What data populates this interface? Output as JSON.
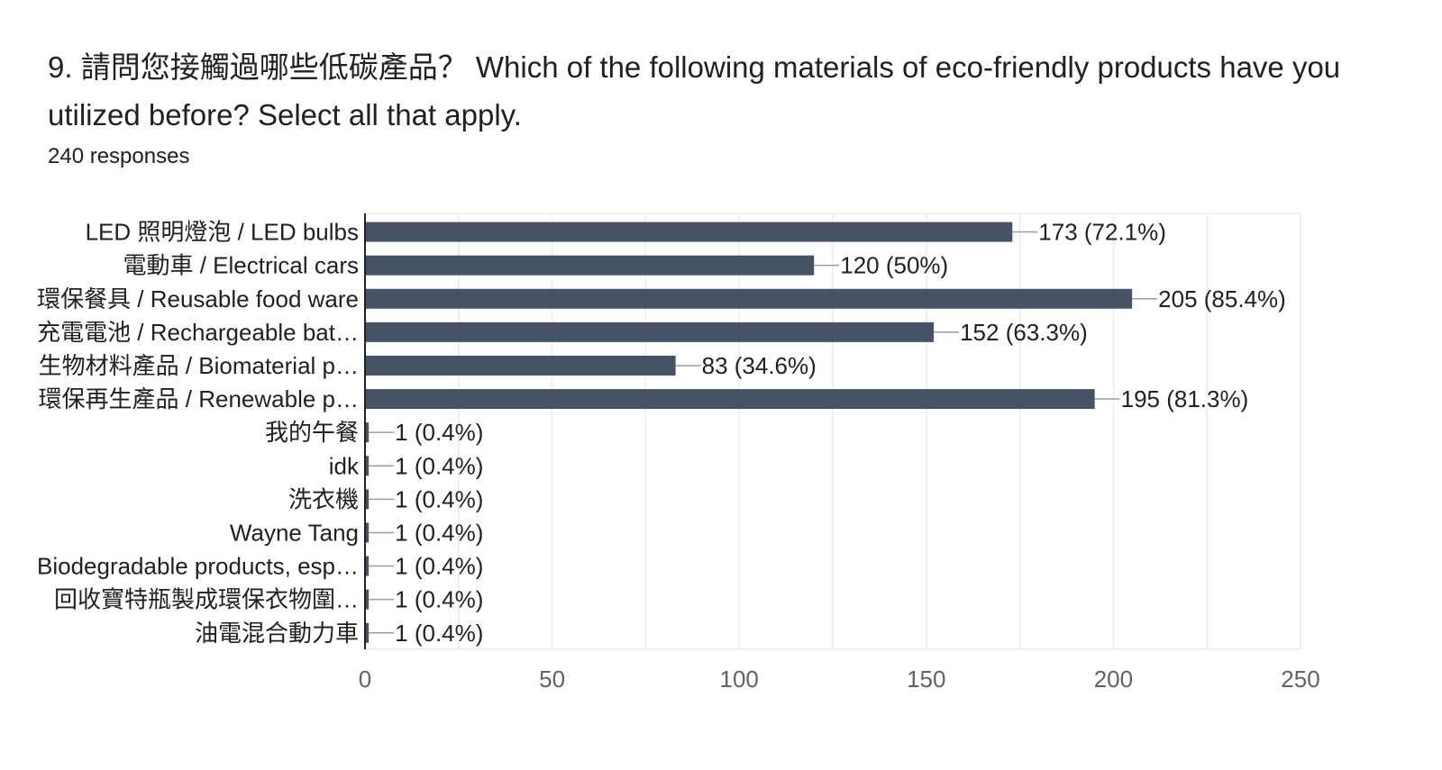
{
  "question": {
    "title": "9. 請問您接觸過哪些低碳產品？ Which of the following materials of eco-friendly products have you utilized before? Select all that apply.",
    "responses": "240 responses"
  },
  "colors": {
    "bar": "#465366",
    "grid": "#ececec",
    "axis": "#202124",
    "connector": "#9e9e9e"
  },
  "chart_data": {
    "type": "bar",
    "orientation": "horizontal",
    "categories": [
      "LED 照明燈泡 / LED bulbs",
      "電動車 / Electrical cars",
      "環保餐具 / Reusable food ware",
      "充電電池 / Rechargeable bat…",
      "生物材料產品 / Biomaterial p…",
      "環保再生產品 / Renewable p…",
      "我的午餐",
      "idk",
      "洗衣機",
      "Wayne Tang",
      "Biodegradable products, esp…",
      "回收寶特瓶製成環保衣物圍…",
      "油電混合動力車"
    ],
    "values": [
      173,
      120,
      205,
      152,
      83,
      195,
      1,
      1,
      1,
      1,
      1,
      1,
      1
    ],
    "value_labels": [
      "173 (72.1%)",
      "120 (50%)",
      "205 (85.4%)",
      "152 (63.3%)",
      "83 (34.6%)",
      "195 (81.3%)",
      "1 (0.4%)",
      "1 (0.4%)",
      "1 (0.4%)",
      "1 (0.4%)",
      "1 (0.4%)",
      "1 (0.4%)",
      "1 (0.4%)"
    ],
    "xlim": [
      0,
      250
    ],
    "xticks": [
      0,
      50,
      100,
      150,
      200,
      250
    ],
    "xtick_labels": [
      "0",
      "50",
      "100",
      "150",
      "200",
      "250"
    ],
    "grid": true,
    "legend": "none"
  }
}
